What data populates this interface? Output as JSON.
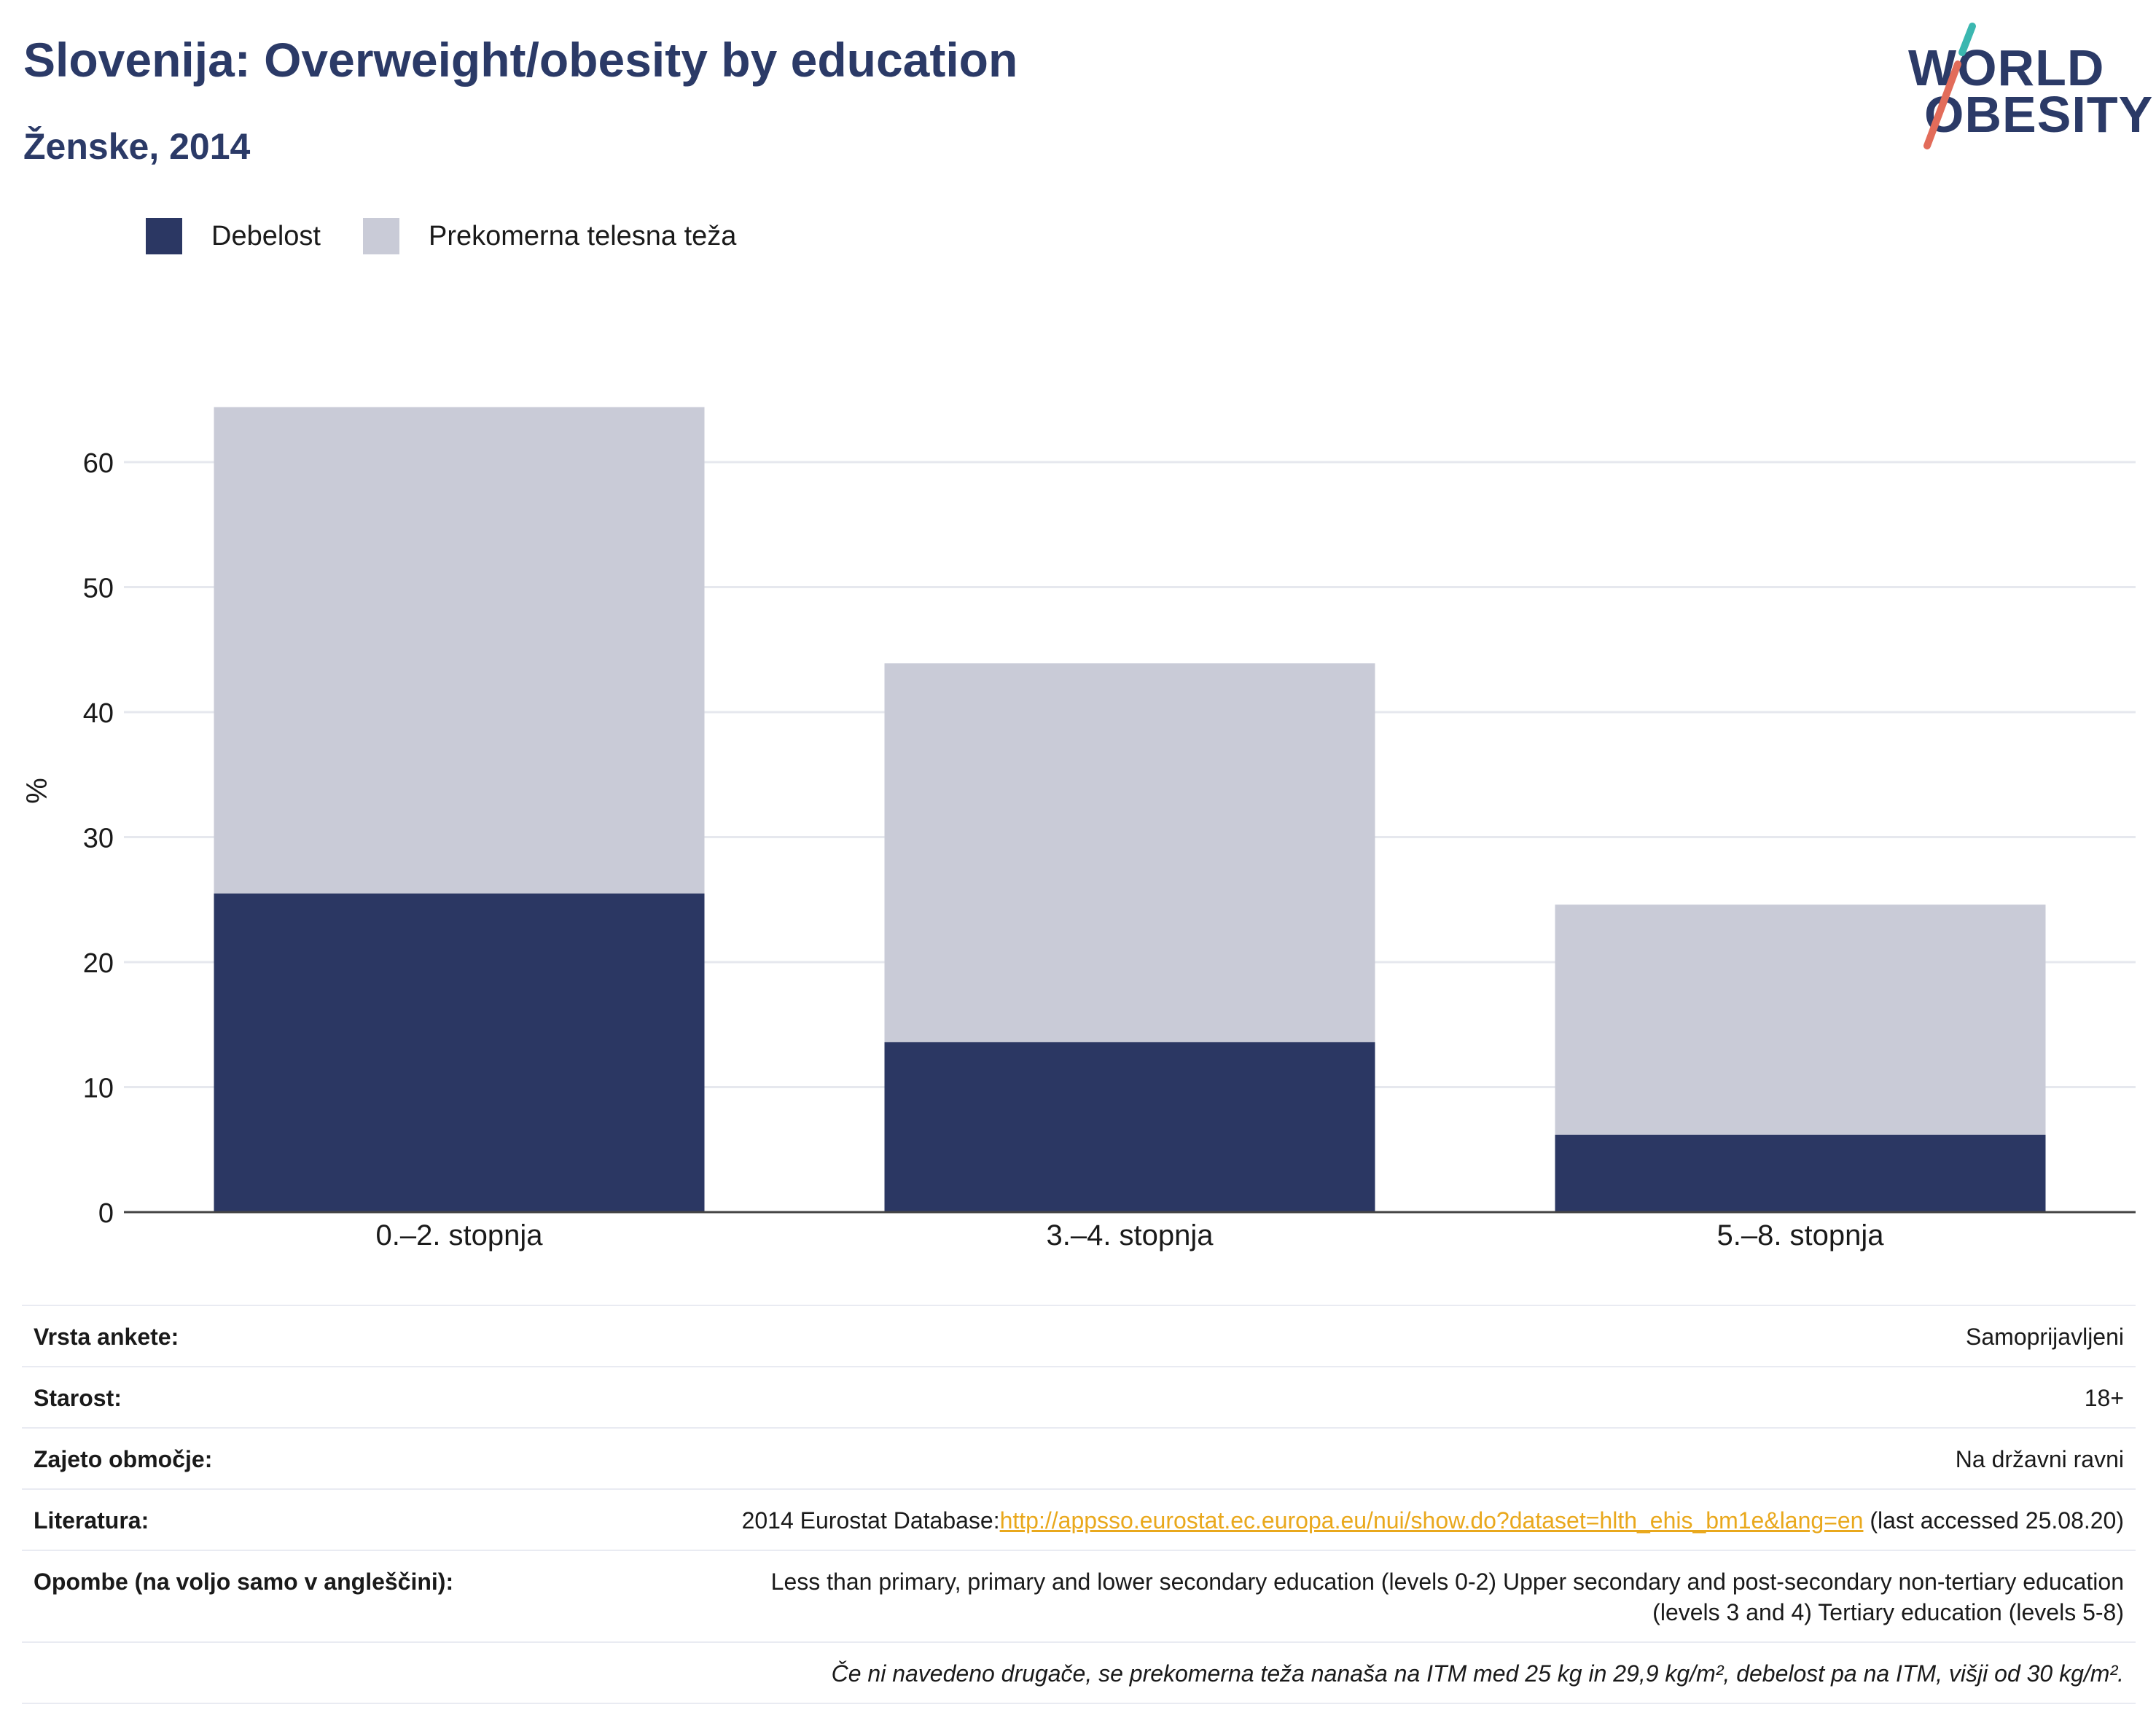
{
  "header": {
    "title": "Slovenija: Overweight/obesity by education",
    "subtitle": "Ženske, 2014"
  },
  "logo": {
    "line1": "WORLD",
    "line2": "OBESITY",
    "slash_colors": [
      "#3bb7b0",
      "#e26c5a"
    ]
  },
  "legend": [
    {
      "label": "Debelost",
      "color": "#2b3763"
    },
    {
      "label": "Prekomerna telesna teža",
      "color": "#c9cbd7"
    }
  ],
  "chart_data": {
    "type": "bar",
    "stacked": true,
    "categories": [
      "0.–2. stopnja",
      "3.–4. stopnja",
      "5.–8. stopnja"
    ],
    "series": [
      {
        "name": "Debelost",
        "color": "#2b3763",
        "values": [
          25.5,
          13.6,
          6.2
        ]
      },
      {
        "name": "Prekomerna telesna teža",
        "color": "#c9cbd7",
        "values": [
          38.9,
          30.3,
          18.4
        ]
      }
    ],
    "ylabel": "%",
    "ylim": [
      0,
      70
    ],
    "yticks": [
      0,
      10,
      20,
      30,
      40,
      50,
      60
    ],
    "grid": true,
    "legend_position": "top-left"
  },
  "info": {
    "survey_type": {
      "label": "Vrsta ankete:",
      "value": "Samoprijavljeni"
    },
    "age": {
      "label": "Starost:",
      "value": "18+"
    },
    "area": {
      "label": "Zajeto območje:",
      "value": "Na državni ravni"
    },
    "literature": {
      "label": "Literatura:",
      "prefix": "2014 Eurostat Database:",
      "link": "http://appsso.eurostat.ec.europa.eu/nui/show.do?dataset=hlth_ehis_bm1e&lang=en",
      "suffix": " (last accessed 25.08.20)"
    },
    "notes": {
      "label": "Opombe (na voljo samo v angleščini):",
      "line1": "Less than primary, primary and lower secondary education (levels 0-2) Upper secondary and post-secondary non-tertiary education",
      "line2": "(levels 3 and 4) Tertiary education (levels 5-8)"
    },
    "footnote": "Če ni navedeno drugače, se prekomerna teža nanaša na ITM med 25 kg in 29,9 kg/m², debelost pa na ITM, višji od 30 kg/m²."
  }
}
